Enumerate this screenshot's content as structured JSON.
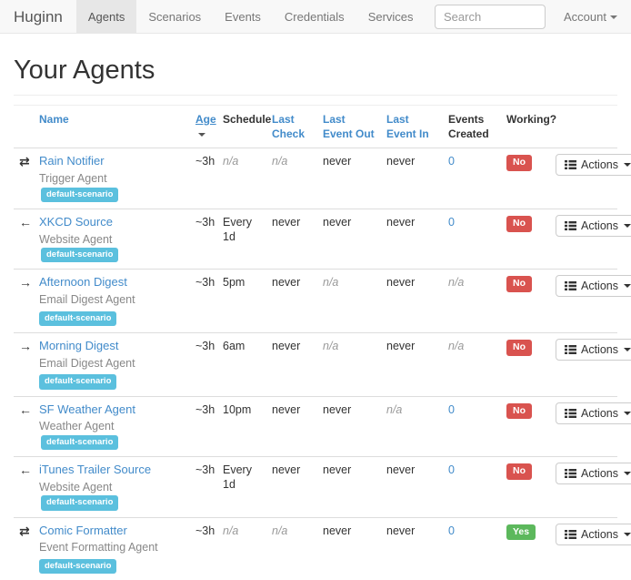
{
  "colors": {
    "accent": "#428bca",
    "badge-bg": "#5bc0de",
    "danger": "#d9534f",
    "success": "#5cb85c",
    "muted": "#999999",
    "navbar-bg": "#f8f8f8",
    "navbar-border": "#e7e7e7",
    "border": "#dddddd"
  },
  "navbar": {
    "brand": "Huginn",
    "items": [
      {
        "label": "Agents",
        "active": true
      },
      {
        "label": "Scenarios",
        "active": false
      },
      {
        "label": "Events",
        "active": false
      },
      {
        "label": "Credentials",
        "active": false
      },
      {
        "label": "Services",
        "active": false
      }
    ],
    "search_placeholder": "Search",
    "account_label": "Account"
  },
  "page": {
    "title": "Your Agents"
  },
  "icons": {
    "exchange": "⇄",
    "arrow-left": "←",
    "arrow-right": "→"
  },
  "table": {
    "headers": [
      {
        "label": "Name",
        "link": true
      },
      {
        "label": "Age",
        "link": true,
        "sorted": "desc"
      },
      {
        "label": "Schedule",
        "link": false
      },
      {
        "label": "Last Check",
        "link": true
      },
      {
        "label": "Last Event Out",
        "link": true
      },
      {
        "label": "Last Event In",
        "link": true
      },
      {
        "label": "Events Created",
        "link": false
      },
      {
        "label": "Working?",
        "link": false,
        "nowrap": true
      }
    ],
    "rows": [
      {
        "icon": "exchange",
        "name": "Rain Notifier",
        "type": "Trigger Agent",
        "scenario": "default-scenario",
        "badge_inline": true,
        "age": {
          "text": "~3h"
        },
        "schedule": {
          "text": "n/a",
          "muted": true
        },
        "last_check": {
          "text": "n/a",
          "muted": true
        },
        "last_event_out": {
          "text": "never"
        },
        "last_event_in": {
          "text": "never"
        },
        "events_created": {
          "text": "0",
          "link": true
        },
        "working": {
          "text": "No",
          "status": "danger"
        },
        "actions_label": "Actions"
      },
      {
        "icon": "arrow-left",
        "name": "XKCD Source",
        "type": "Website Agent",
        "scenario": "default-scenario",
        "badge_inline": true,
        "age": {
          "text": "~3h"
        },
        "schedule": {
          "text": "Every 1d"
        },
        "last_check": {
          "text": "never"
        },
        "last_event_out": {
          "text": "never"
        },
        "last_event_in": {
          "text": "never"
        },
        "events_created": {
          "text": "0",
          "link": true
        },
        "working": {
          "text": "No",
          "status": "danger"
        },
        "actions_label": "Actions"
      },
      {
        "icon": "arrow-right",
        "name": "Afternoon Digest",
        "type": "Email Digest Agent",
        "scenario": "default-scenario",
        "badge_inline": false,
        "age": {
          "text": "~3h"
        },
        "schedule": {
          "text": "5pm"
        },
        "last_check": {
          "text": "never"
        },
        "last_event_out": {
          "text": "n/a",
          "muted": true
        },
        "last_event_in": {
          "text": "never"
        },
        "events_created": {
          "text": "n/a",
          "muted": true
        },
        "working": {
          "text": "No",
          "status": "danger"
        },
        "actions_label": "Actions"
      },
      {
        "icon": "arrow-right",
        "name": "Morning Digest",
        "type": "Email Digest Agent",
        "scenario": "default-scenario",
        "badge_inline": false,
        "age": {
          "text": "~3h"
        },
        "schedule": {
          "text": "6am"
        },
        "last_check": {
          "text": "never"
        },
        "last_event_out": {
          "text": "n/a",
          "muted": true
        },
        "last_event_in": {
          "text": "never"
        },
        "events_created": {
          "text": "n/a",
          "muted": true
        },
        "working": {
          "text": "No",
          "status": "danger"
        },
        "actions_label": "Actions"
      },
      {
        "icon": "arrow-left",
        "name": "SF Weather Agent",
        "type": "Weather Agent",
        "scenario": "default-scenario",
        "badge_inline": true,
        "age": {
          "text": "~3h"
        },
        "schedule": {
          "text": "10pm"
        },
        "last_check": {
          "text": "never"
        },
        "last_event_out": {
          "text": "never"
        },
        "last_event_in": {
          "text": "n/a",
          "muted": true
        },
        "events_created": {
          "text": "0",
          "link": true
        },
        "working": {
          "text": "No",
          "status": "danger"
        },
        "actions_label": "Actions"
      },
      {
        "icon": "arrow-left",
        "name": "iTunes Trailer Source",
        "type": "Website Agent",
        "scenario": "default-scenario",
        "badge_inline": true,
        "age": {
          "text": "~3h"
        },
        "schedule": {
          "text": "Every 1d"
        },
        "last_check": {
          "text": "never"
        },
        "last_event_out": {
          "text": "never"
        },
        "last_event_in": {
          "text": "never"
        },
        "events_created": {
          "text": "0",
          "link": true
        },
        "working": {
          "text": "No",
          "status": "danger"
        },
        "actions_label": "Actions"
      },
      {
        "icon": "exchange",
        "name": "Comic Formatter",
        "type": "Event Formatting Agent",
        "scenario": "default-scenario",
        "badge_inline": false,
        "age": {
          "text": "~3h"
        },
        "schedule": {
          "text": "n/a",
          "muted": true
        },
        "last_check": {
          "text": "n/a",
          "muted": true
        },
        "last_event_out": {
          "text": "never"
        },
        "last_event_in": {
          "text": "never"
        },
        "events_created": {
          "text": "0",
          "link": true
        },
        "working": {
          "text": "Yes",
          "status": "success"
        },
        "actions_label": "Actions"
      }
    ]
  }
}
